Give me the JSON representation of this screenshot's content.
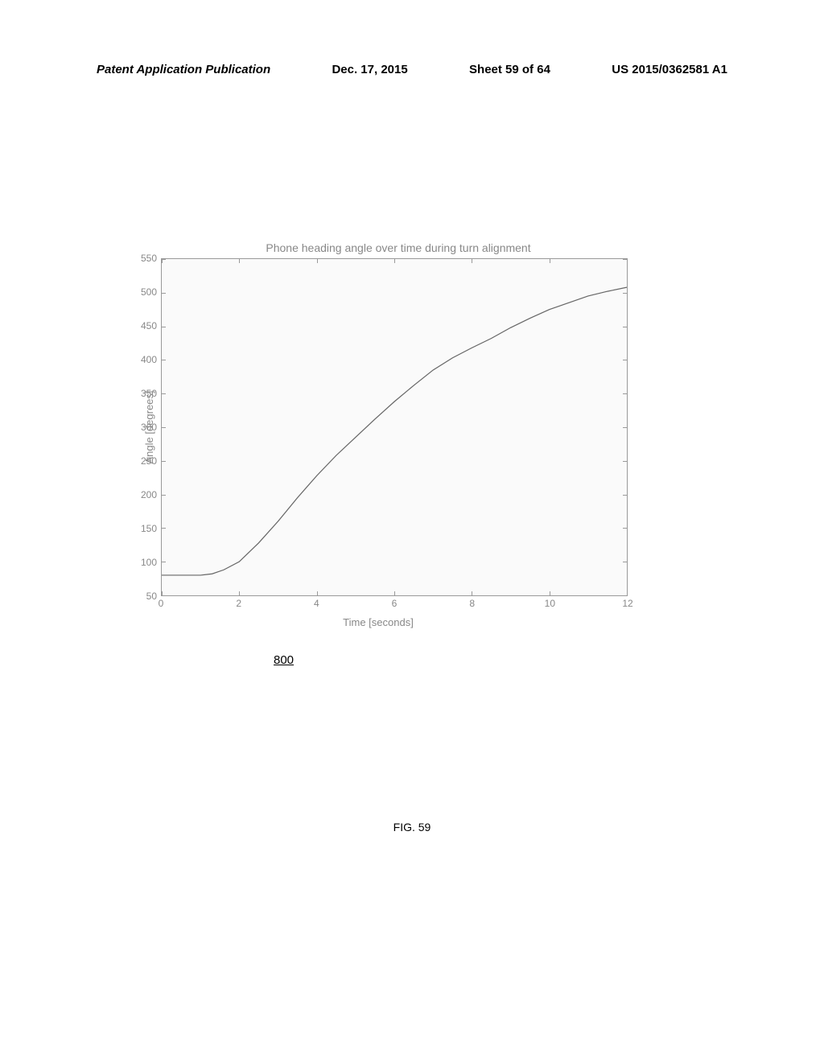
{
  "header": {
    "left": "Patent Application Publication",
    "center": "Dec. 17, 2015",
    "sheet": "Sheet 59 of 64",
    "pubnum": "US 2015/0362581 A1"
  },
  "chart": {
    "type": "line",
    "title": "Phone heading angle over time during turn alignment",
    "xlabel": "Time [seconds]",
    "ylabel": "Angle [degrees]",
    "xlim": [
      0,
      12
    ],
    "ylim": [
      50,
      550
    ],
    "xticks": [
      0,
      2,
      4,
      6,
      8,
      10,
      12
    ],
    "yticks": [
      50,
      100,
      150,
      200,
      250,
      300,
      350,
      400,
      450,
      500,
      550
    ],
    "line_color": "#666666",
    "line_width": 1.2,
    "background_color": "#fafafa",
    "border_color": "#999999",
    "label_color": "#888888",
    "tick_fontsize": 12,
    "label_fontsize": 13,
    "title_fontsize": 14,
    "data": {
      "x": [
        0,
        0.5,
        1.0,
        1.3,
        1.6,
        2.0,
        2.5,
        3.0,
        3.5,
        4.0,
        4.5,
        5.0,
        5.5,
        6.0,
        6.5,
        7.0,
        7.5,
        8.0,
        8.5,
        9.0,
        9.5,
        10.0,
        10.5,
        11.0,
        11.5,
        12.0
      ],
      "y": [
        80,
        80,
        80,
        82,
        88,
        100,
        128,
        160,
        195,
        228,
        258,
        285,
        312,
        338,
        362,
        385,
        403,
        418,
        432,
        448,
        462,
        475,
        485,
        495,
        502,
        508
      ]
    }
  },
  "figure": {
    "number": "800",
    "label": "FIG. 59"
  }
}
